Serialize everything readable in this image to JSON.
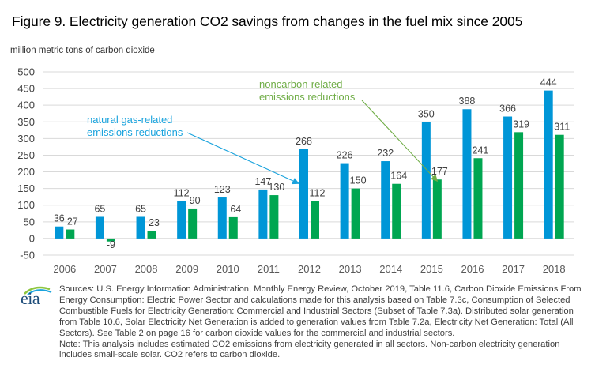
{
  "chart_data": {
    "type": "bar",
    "title": "Figure 9. Electricity generation CO2 savings from changes in the fuel mix since 2005",
    "ylabel": "million metric tons of carbon dioxide",
    "xlabel": "",
    "ylim": [
      -50,
      500
    ],
    "yticks": [
      -50,
      0,
      50,
      100,
      150,
      200,
      250,
      300,
      350,
      400,
      450,
      500
    ],
    "grid": true,
    "categories": [
      "2006",
      "2007",
      "2008",
      "2009",
      "2010",
      "2011",
      "2012",
      "2013",
      "2014",
      "2015",
      "2016",
      "2017",
      "2018"
    ],
    "series": [
      {
        "name": "natural gas-related emissions reductions",
        "color": "#0096D7",
        "values": [
          36,
          65,
          65,
          112,
          123,
          147,
          268,
          226,
          232,
          350,
          388,
          366,
          444
        ]
      },
      {
        "name": "noncarbon-related emissions reductions",
        "color": "#00A651",
        "values": [
          27,
          -9,
          23,
          90,
          64,
          130,
          112,
          150,
          164,
          177,
          241,
          319,
          311
        ]
      }
    ],
    "annotations": [
      {
        "text_lines": [
          "natural gas-related",
          "emissions reductions"
        ],
        "color": "#1AA3DD",
        "points_to": {
          "series": 0,
          "category": "2012"
        }
      },
      {
        "text_lines": [
          "noncarbon-related",
          "emissions reductions"
        ],
        "color": "#70AD47",
        "points_to": {
          "series": 1,
          "category": "2015"
        }
      }
    ]
  },
  "footer": {
    "logo_text": "eia",
    "sources": "Sources: U.S. Energy Information Administration, Monthly Energy Review, October 2019, Table 11.6, Carbon Dioxide Emissions From Energy Consumption: Electric Power Sector and calculations made for this analysis based on Table 7.3c, Consumption of Selected Combustible Fuels for Electricity Generation: Commercial and Industrial Sectors (Subset of Table 7.3a). Distributed solar generation from Table 10.6, Solar Electricity Net Generation is added to generation values from Table 7.2a, Electricity Net Generation: Total (All Sectors). See Table 2 on page 16 for carbon dioxide values for the commercial and industrial sectors.",
    "note": "Note:  This analysis includes estimated CO2 emissions from electricity generated in all sectors. Non-carbon electricity generation includes small-scale solar. CO2 refers to carbon dioxide."
  }
}
